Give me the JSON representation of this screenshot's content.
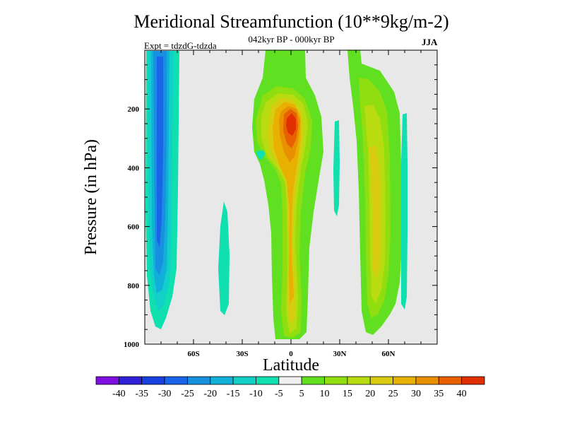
{
  "chart_data": {
    "type": "heatmap",
    "title": "Meridional Streamfunction (10**9kg/m-2)",
    "subtitle": "042kyr BP - 000kyr BP",
    "left_label": "Expt = tdzdG-tdzda",
    "right_label": "JJA",
    "xlabel": "Latitude",
    "ylabel": "Pressure (in hPa)",
    "xlim": [
      -90,
      90
    ],
    "ylim": [
      1000,
      0
    ],
    "x_ticks": [
      {
        "value": -60,
        "label": "60S"
      },
      {
        "value": -30,
        "label": "30S"
      },
      {
        "value": 0,
        "label": "0"
      },
      {
        "value": 30,
        "label": "30N"
      },
      {
        "value": 60,
        "label": "60N"
      }
    ],
    "y_ticks": [
      {
        "value": 200,
        "label": "200"
      },
      {
        "value": 400,
        "label": "400"
      },
      {
        "value": 600,
        "label": "600"
      },
      {
        "value": 800,
        "label": "800"
      },
      {
        "value": 1000,
        "label": "1000"
      }
    ],
    "levels": [
      "-40",
      "-35",
      "-30",
      "-25",
      "-20",
      "-15",
      "-10",
      "-5",
      "5",
      "10",
      "15",
      "20",
      "25",
      "30",
      "35",
      "40"
    ],
    "colors": [
      "#7f0fe0",
      "#3020d8",
      "#1840e0",
      "#1a64e8",
      "#1890e0",
      "#10b0d8",
      "#10d0c8",
      "#10e0b0",
      "#f0f0f0",
      "#60e020",
      "#90dd10",
      "#b8dc10",
      "#d8cc10",
      "#e8b000",
      "#e89000",
      "#e86000",
      "#e03000"
    ],
    "background": "#e8e8e8",
    "features": [
      {
        "name": "sh-negative-cell",
        "lat_range": [
          -89,
          -70
        ],
        "p_range": [
          20,
          950
        ],
        "min_value": -30
      },
      {
        "name": "sh-midlat-blob",
        "lat_range": [
          -45,
          -39
        ],
        "p_range": [
          540,
          910
        ],
        "value": -10
      },
      {
        "name": "equatorial-positive-column",
        "lat_range": [
          -22,
          20
        ],
        "p_range": [
          0,
          980
        ],
        "max_value": 40,
        "core_lat": 1,
        "core_p": 200
      },
      {
        "name": "nh-positive-cell",
        "lat_range": [
          33,
          70
        ],
        "p_range": [
          0,
          970
        ],
        "max_value": 20
      },
      {
        "name": "nh-negative-strip",
        "lat_range": [
          67,
          70
        ],
        "p_range": [
          250,
          940
        ],
        "value": -10
      },
      {
        "name": "nh-midlat-negative-strip",
        "lat_range": [
          25,
          28
        ],
        "p_range": [
          320,
          570
        ],
        "value": -10
      }
    ]
  }
}
